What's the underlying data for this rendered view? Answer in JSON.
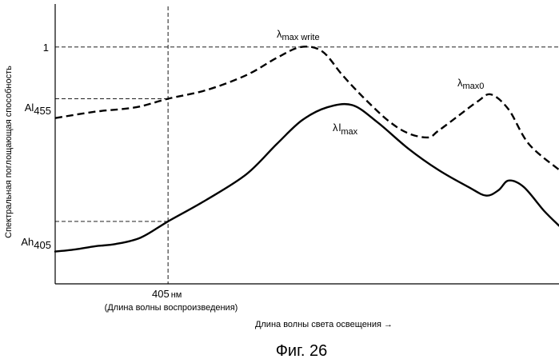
{
  "chart_data": {
    "type": "line",
    "title": "Фиг. 26",
    "xlabel": "Длина волны света освещения →",
    "ylabel": "Спектральная поглощающая способность",
    "x_tick": {
      "value": "405",
      "unit": "нм",
      "note": "(Длина волны воспроизведения)"
    },
    "y_ticks": [
      {
        "name": "one",
        "text": "1",
        "value": 1.0
      },
      {
        "name": "al455",
        "base": "Al",
        "sub": "455",
        "value": 0.76
      },
      {
        "name": "ah405",
        "base": "Ah",
        "sub": "405",
        "value": 0.19
      }
    ],
    "xlim": [
      0,
      100
    ],
    "ylim": [
      -0.1,
      1.2
    ],
    "reference_x": 22.4,
    "series": [
      {
        "name": "dashed",
        "style": "dashed",
        "x": [
          0,
          8,
          16,
          22.4,
          30,
          38,
          44,
          48.8,
          53,
          57,
          61,
          66,
          70,
          74,
          76,
          80,
          84,
          86.5,
          90,
          94,
          100
        ],
        "y": [
          0.67,
          0.7,
          0.72,
          0.76,
          0.8,
          0.87,
          0.95,
          1.0,
          0.98,
          0.87,
          0.77,
          0.66,
          0.6,
          0.58,
          0.61,
          0.68,
          0.75,
          0.78,
          0.71,
          0.55,
          0.43
        ]
      },
      {
        "name": "solid",
        "style": "solid",
        "x": [
          0,
          4,
          8,
          12,
          17,
          22.4,
          30,
          38,
          44,
          49,
          54,
          59,
          64,
          70,
          76,
          82,
          85.5,
          88,
          90,
          93,
          97,
          100
        ],
        "y": [
          0.05,
          0.06,
          0.075,
          0.085,
          0.115,
          0.19,
          0.29,
          0.41,
          0.55,
          0.66,
          0.72,
          0.73,
          0.65,
          0.53,
          0.43,
          0.35,
          0.31,
          0.335,
          0.38,
          0.35,
          0.24,
          0.17
        ]
      }
    ],
    "annotations": [
      {
        "name": "lambda-max-write",
        "symbol": "λ",
        "sub": "max write",
        "x": 50,
        "y": 1.04
      },
      {
        "name": "lambda-max0",
        "symbol": "λ",
        "sub": "max0",
        "x": 87,
        "y": 0.82
      },
      {
        "name": "lambda-l-max",
        "symbol": "λ",
        "mid": "l",
        "sub": "max",
        "x": 62,
        "y": 0.65
      }
    ]
  }
}
